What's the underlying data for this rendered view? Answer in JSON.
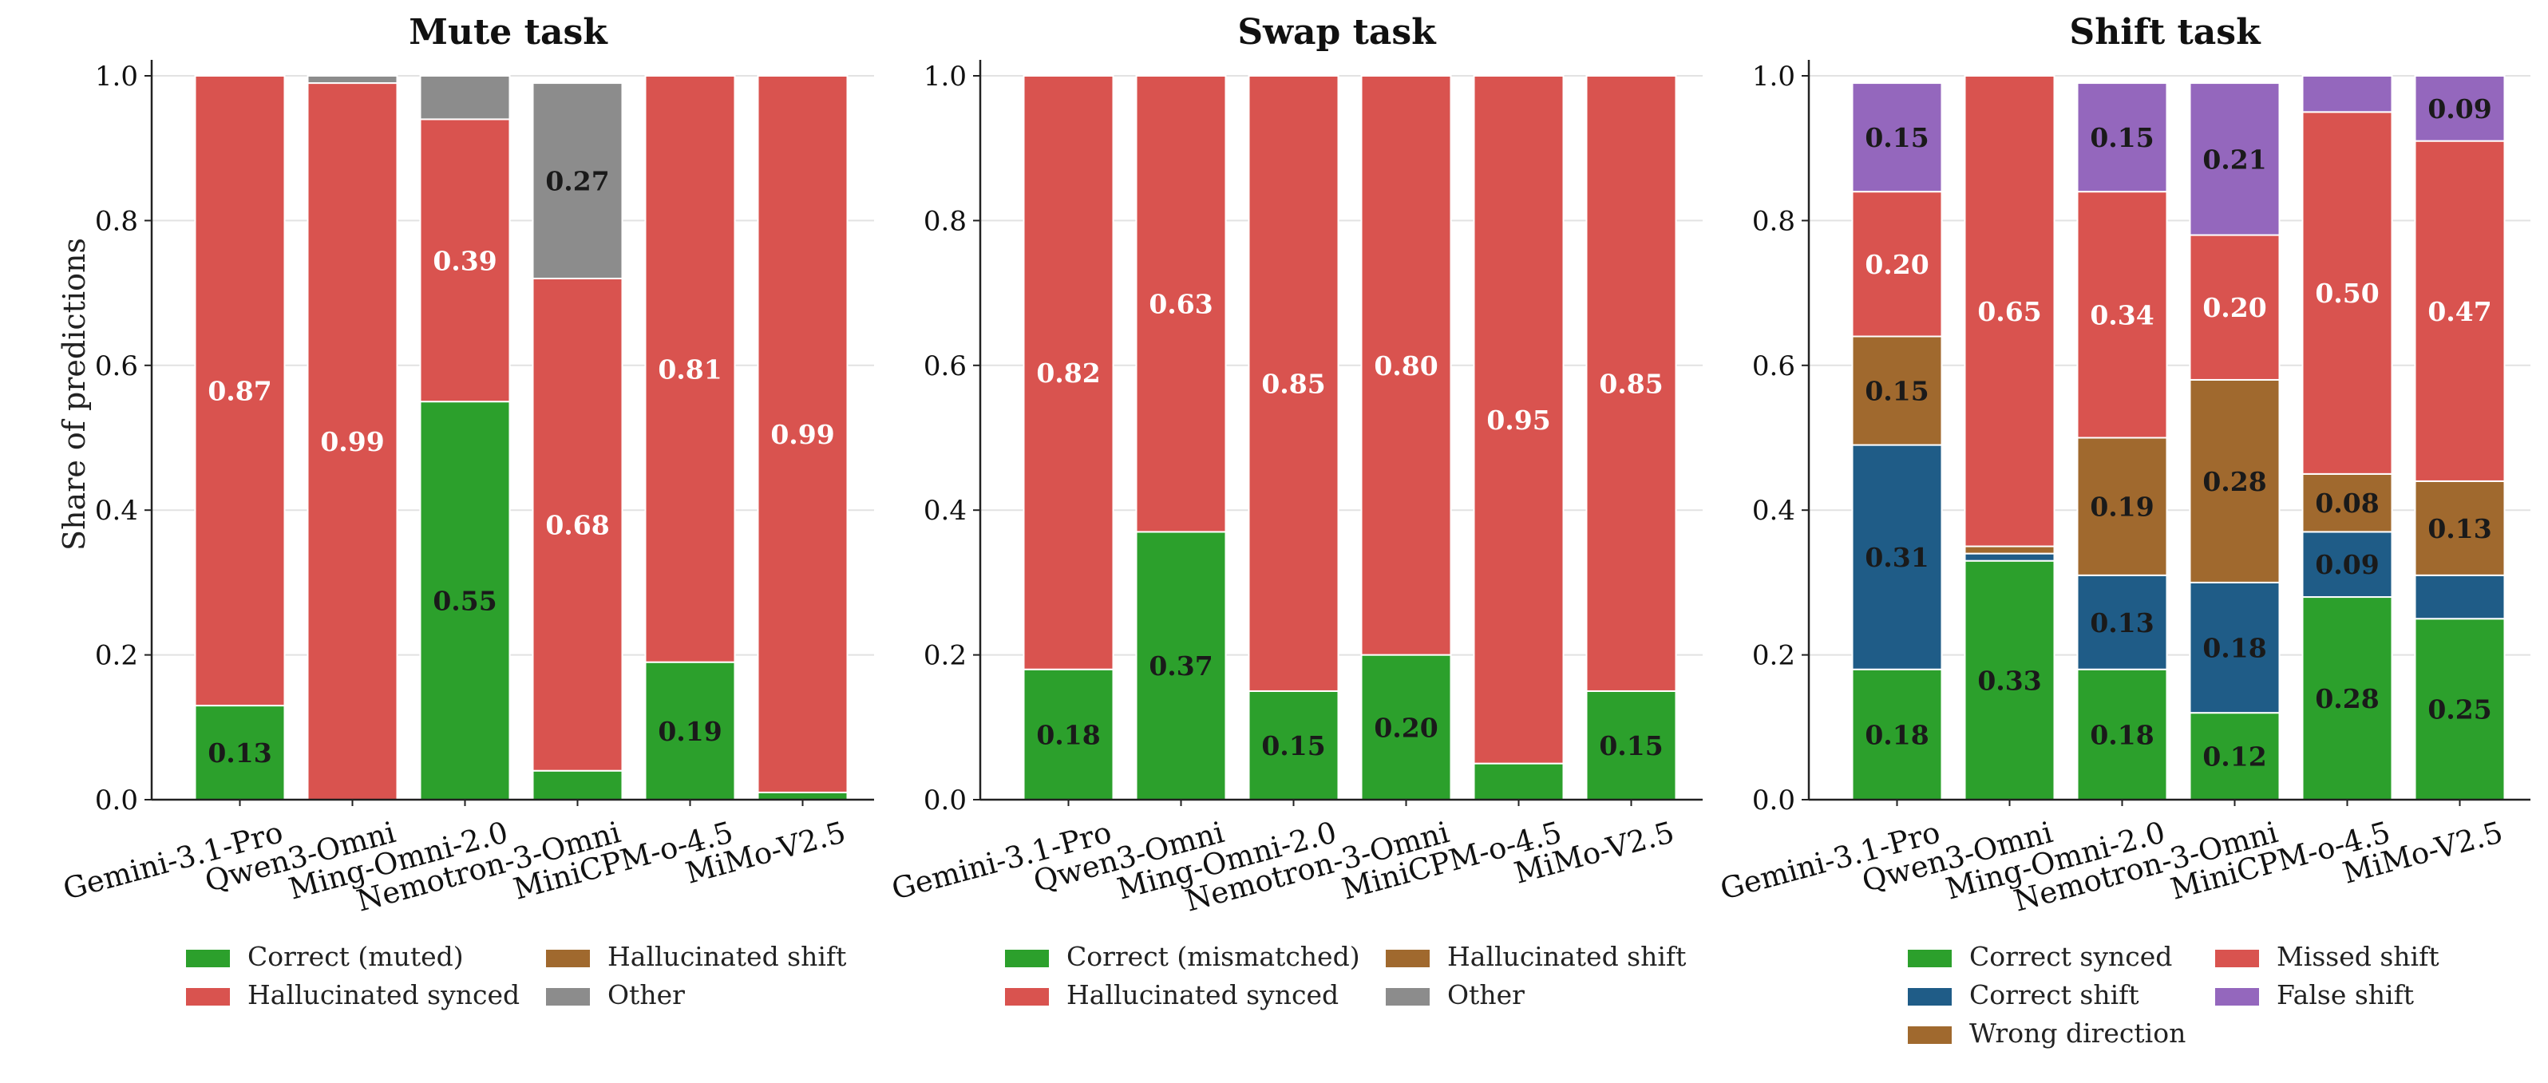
{
  "figure": {
    "ylabel": "Share of predictions",
    "models": [
      "Gemini-3.1-Pro",
      "Qwen3-Omni",
      "Ming-Omni-2.0",
      "Nemotron-3-Omni",
      "MiniCPM-o-4.5",
      "MiMo-V2.5"
    ]
  },
  "chart_data": [
    {
      "type": "bar",
      "stacked": true,
      "title": "Mute task",
      "categories": [
        "Gemini-3.1-Pro",
        "Qwen3-Omni",
        "Ming-Omni-2.0",
        "Nemotron-3-Omni",
        "MiniCPM-o-4.5",
        "MiMo-V2.5"
      ],
      "ylim": [
        0,
        1.0
      ],
      "yticks": [
        "0.0",
        "0.2",
        "0.4",
        "0.6",
        "0.8",
        "1.0"
      ],
      "grid": true,
      "legend_position": "bottom",
      "series": [
        {
          "name": "Correct (muted)",
          "color": "#2ca02c",
          "values": [
            0.13,
            0.0,
            0.55,
            0.04,
            0.19,
            0.01
          ],
          "labels": [
            "0.13",
            "",
            "0.55",
            "",
            "0.19",
            ""
          ]
        },
        {
          "name": "Hallucinated synced",
          "color": "#d9534f",
          "values": [
            0.87,
            0.99,
            0.39,
            0.68,
            0.81,
            0.99
          ],
          "labels": [
            "0.87",
            "0.99",
            "0.39",
            "0.68",
            "0.81",
            "0.99"
          ]
        },
        {
          "name": "Hallucinated shift",
          "color": "#a0692e",
          "values": [
            0,
            0,
            0,
            0,
            0,
            0
          ],
          "labels": [
            "",
            "",
            "",
            "",
            "",
            ""
          ]
        },
        {
          "name": "Other",
          "color": "#8c8c8c",
          "values": [
            0.0,
            0.01,
            0.06,
            0.27,
            0.0,
            0.0
          ],
          "labels": [
            "",
            "",
            "",
            "0.27",
            "",
            ""
          ]
        }
      ],
      "legend_layout": [
        [
          "Correct (muted)",
          "Hallucinated synced"
        ],
        [
          "Hallucinated shift",
          "Other"
        ]
      ]
    },
    {
      "type": "bar",
      "stacked": true,
      "title": "Swap task",
      "categories": [
        "Gemini-3.1-Pro",
        "Qwen3-Omni",
        "Ming-Omni-2.0",
        "Nemotron-3-Omni",
        "MiniCPM-o-4.5",
        "MiMo-V2.5"
      ],
      "ylim": [
        0,
        1.0
      ],
      "yticks": [
        "0.0",
        "0.2",
        "0.4",
        "0.6",
        "0.8",
        "1.0"
      ],
      "grid": true,
      "legend_position": "bottom",
      "series": [
        {
          "name": "Correct (mismatched)",
          "color": "#2ca02c",
          "values": [
            0.18,
            0.37,
            0.15,
            0.2,
            0.05,
            0.15
          ],
          "labels": [
            "0.18",
            "0.37",
            "0.15",
            "0.20",
            "",
            "0.15"
          ]
        },
        {
          "name": "Hallucinated synced",
          "color": "#d9534f",
          "values": [
            0.82,
            0.63,
            0.85,
            0.8,
            0.95,
            0.85
          ],
          "labels": [
            "0.82",
            "0.63",
            "0.85",
            "0.80",
            "0.95",
            "0.85"
          ]
        },
        {
          "name": "Hallucinated shift",
          "color": "#a0692e",
          "values": [
            0,
            0,
            0,
            0,
            0,
            0
          ],
          "labels": [
            "",
            "",
            "",
            "",
            "",
            ""
          ]
        },
        {
          "name": "Other",
          "color": "#8c8c8c",
          "values": [
            0,
            0,
            0,
            0,
            0,
            0
          ],
          "labels": [
            "",
            "",
            "",
            "",
            "",
            ""
          ]
        }
      ],
      "legend_layout": [
        [
          "Correct (mismatched)",
          "Hallucinated synced"
        ],
        [
          "Hallucinated shift",
          "Other"
        ]
      ]
    },
    {
      "type": "bar",
      "stacked": true,
      "title": "Shift task",
      "categories": [
        "Gemini-3.1-Pro",
        "Qwen3-Omni",
        "Ming-Omni-2.0",
        "Nemotron-3-Omni",
        "MiniCPM-o-4.5",
        "MiMo-V2.5"
      ],
      "ylim": [
        0,
        1.0
      ],
      "yticks": [
        "0.0",
        "0.2",
        "0.4",
        "0.6",
        "0.8",
        "1.0"
      ],
      "grid": true,
      "legend_position": "bottom",
      "series": [
        {
          "name": "Correct synced",
          "color": "#2ca02c",
          "values": [
            0.18,
            0.33,
            0.18,
            0.12,
            0.28,
            0.25
          ],
          "labels": [
            "0.18",
            "0.33",
            "0.18",
            "0.12",
            "0.28",
            "0.25"
          ]
        },
        {
          "name": "Correct shift",
          "color": "#1f5c87",
          "values": [
            0.31,
            0.01,
            0.13,
            0.18,
            0.09,
            0.06
          ],
          "labels": [
            "0.31",
            "",
            "0.13",
            "0.18",
            "0.09",
            ""
          ]
        },
        {
          "name": "Wrong direction",
          "color": "#a0692e",
          "values": [
            0.15,
            0.01,
            0.19,
            0.28,
            0.08,
            0.13
          ],
          "labels": [
            "0.15",
            "",
            "0.19",
            "0.28",
            "0.08",
            "0.13"
          ]
        },
        {
          "name": "Missed shift",
          "color": "#d9534f",
          "values": [
            0.2,
            0.65,
            0.34,
            0.2,
            0.5,
            0.47
          ],
          "labels": [
            "0.20",
            "0.65",
            "0.34",
            "0.20",
            "0.50",
            "0.47"
          ]
        },
        {
          "name": "False shift",
          "color": "#9467bd",
          "values": [
            0.15,
            0.0,
            0.15,
            0.21,
            0.05,
            0.09
          ],
          "labels": [
            "0.15",
            "",
            "0.15",
            "0.21",
            "",
            "0.09"
          ]
        }
      ],
      "legend_layout": [
        [
          "Correct synced",
          "Correct shift",
          "Wrong direction"
        ],
        [
          "Missed shift",
          "False shift"
        ]
      ]
    }
  ]
}
